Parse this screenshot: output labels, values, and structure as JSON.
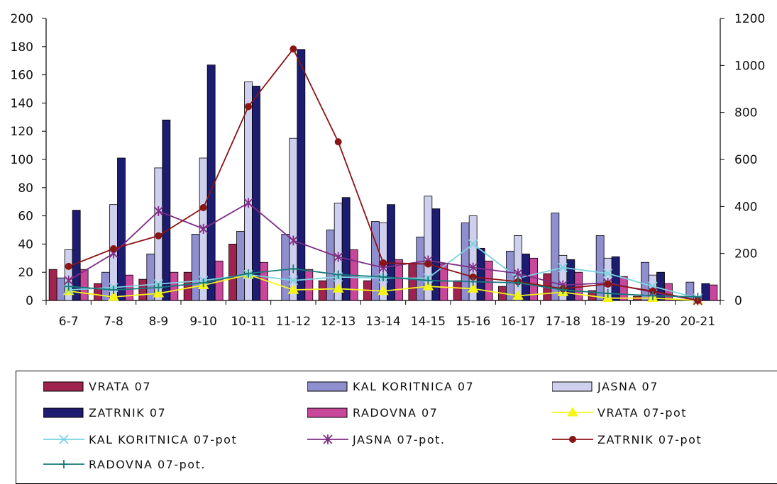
{
  "chart_data": {
    "type": "bar",
    "title": "",
    "categories": [
      "6-7",
      "7-8",
      "8-9",
      "9-10",
      "10-11",
      "11-12",
      "12-13",
      "13-14",
      "14-15",
      "15-16",
      "16-17",
      "17-18",
      "18-19",
      "19-20",
      "20-21"
    ],
    "ylim": [
      0,
      200
    ],
    "y2lim": [
      0,
      1200
    ],
    "y_ticks": [
      "0",
      "20",
      "40",
      "60",
      "80",
      "100",
      "120",
      "140",
      "160",
      "180",
      "200"
    ],
    "y2_ticks": [
      "0",
      "200",
      "400",
      "600",
      "800",
      "1000",
      "1200"
    ],
    "bar_series": [
      {
        "name": "VRATA 07",
        "color": "#a0224e",
        "values": [
          22,
          12,
          15,
          20,
          40,
          0,
          14,
          14,
          26,
          14,
          10,
          19,
          7,
          3,
          0
        ]
      },
      {
        "name": "KAL KORITNICA 07",
        "color": "#8f8fd0",
        "values": [
          16,
          20,
          33,
          47,
          49,
          47,
          50,
          56,
          45,
          55,
          35,
          62,
          46,
          27,
          13
        ]
      },
      {
        "name": "JASNA 07",
        "color": "#cfcfee",
        "values": [
          36,
          68,
          94,
          101,
          155,
          115,
          69,
          55,
          74,
          60,
          46,
          32,
          30,
          18,
          0
        ]
      },
      {
        "name": "ZATRNIK 07",
        "color": "#1c1c70",
        "values": [
          64,
          101,
          128,
          167,
          152,
          178,
          73,
          68,
          65,
          37,
          33,
          29,
          31,
          20,
          12
        ]
      },
      {
        "name": "RADOVNA 07",
        "color": "#c8479b",
        "values": [
          22,
          18,
          20,
          28,
          27,
          22,
          36,
          29,
          26,
          28,
          30,
          20,
          17,
          12,
          11
        ]
      }
    ],
    "line_series": [
      {
        "name": "VRATA 07-pot",
        "axis": "right",
        "color": "#f5f51a",
        "marker": "triangle",
        "values": [
          40,
          15,
          30,
          65,
          110,
          45,
          50,
          40,
          60,
          50,
          20,
          35,
          10,
          10,
          0
        ]
      },
      {
        "name": "KAL KORITNICA 07-pot",
        "axis": "right",
        "color": "#7ad3e0",
        "marker": "x",
        "values": [
          45,
          55,
          70,
          85,
          110,
          85,
          100,
          95,
          95,
          240,
          95,
          140,
          115,
          60,
          10
        ]
      },
      {
        "name": "JASNA 07-pot.",
        "axis": "right",
        "color": "#7f2c85",
        "marker": "star",
        "values": [
          85,
          200,
          380,
          305,
          415,
          255,
          185,
          140,
          170,
          140,
          115,
          65,
          75,
          35,
          0
        ]
      },
      {
        "name": "ZATRNIK 07-pot",
        "axis": "right",
        "color": "#8b1414",
        "marker": "circle",
        "values": [
          145,
          220,
          275,
          395,
          825,
          1070,
          675,
          160,
          155,
          100,
          80,
          50,
          70,
          40,
          0
        ]
      },
      {
        "name": "RADOVNA 07-pot.",
        "axis": "right",
        "color": "#167a7a",
        "marker": "plus",
        "values": [
          60,
          45,
          55,
          75,
          115,
          135,
          110,
          100,
          85,
          80,
          75,
          45,
          30,
          20,
          15
        ]
      }
    ]
  }
}
